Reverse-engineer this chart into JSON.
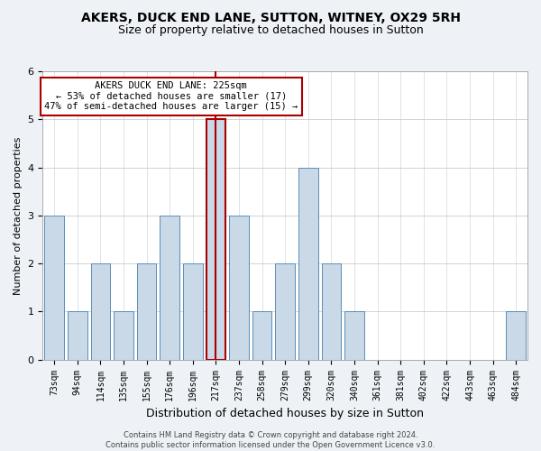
{
  "title": "AKERS, DUCK END LANE, SUTTON, WITNEY, OX29 5RH",
  "subtitle": "Size of property relative to detached houses in Sutton",
  "xlabel": "Distribution of detached houses by size in Sutton",
  "ylabel": "Number of detached properties",
  "categories": [
    "73sqm",
    "94sqm",
    "114sqm",
    "135sqm",
    "155sqm",
    "176sqm",
    "196sqm",
    "217sqm",
    "237sqm",
    "258sqm",
    "279sqm",
    "299sqm",
    "320sqm",
    "340sqm",
    "361sqm",
    "381sqm",
    "402sqm",
    "422sqm",
    "443sqm",
    "463sqm",
    "484sqm"
  ],
  "values": [
    3,
    1,
    2,
    1,
    2,
    3,
    2,
    5,
    3,
    1,
    2,
    4,
    2,
    1,
    0,
    0,
    0,
    0,
    0,
    0,
    1
  ],
  "bar_color": "#c9d9e8",
  "bar_edge_color": "#5b8db8",
  "highlight_index": 7,
  "highlight_line_color": "#aa0000",
  "ylim": [
    0,
    6
  ],
  "yticks": [
    0,
    1,
    2,
    3,
    4,
    5,
    6
  ],
  "annotation_text": "AKERS DUCK END LANE: 225sqm\n← 53% of detached houses are smaller (17)\n47% of semi-detached houses are larger (15) →",
  "annotation_box_color": "#aa0000",
  "footnote": "Contains HM Land Registry data © Crown copyright and database right 2024.\nContains public sector information licensed under the Open Government Licence v3.0.",
  "bg_color": "#eef2f7",
  "plot_bg_color": "#ffffff",
  "title_fontsize": 10,
  "subtitle_fontsize": 9,
  "ylabel_fontsize": 8,
  "xlabel_fontsize": 9,
  "tick_fontsize": 7,
  "footnote_fontsize": 6
}
